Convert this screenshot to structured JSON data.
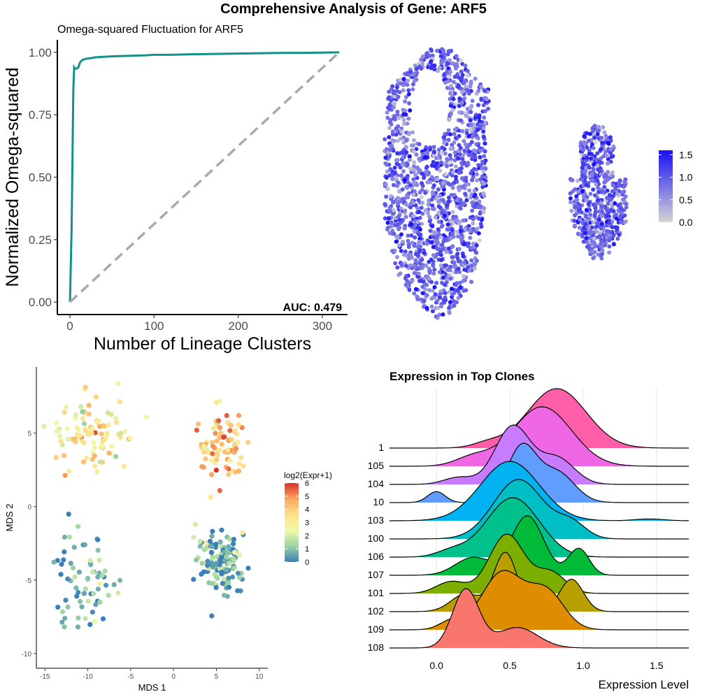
{
  "main_title": "Comprehensive Analysis of Gene: ARF5",
  "chart_data": [
    {
      "type": "line",
      "title": "Omega-squared Fluctuation for ARF5",
      "xlabel": "Number of Lineage Clusters",
      "ylabel": "Normalized Omega-squared",
      "xlim": [
        -15,
        330
      ],
      "ylim": [
        -0.05,
        1.05
      ],
      "xticks": [
        0,
        100,
        200,
        300
      ],
      "yticks": [
        0.0,
        0.25,
        0.5,
        0.75,
        1.0
      ],
      "ytick_labels": [
        "0.00",
        "0.25",
        "0.50",
        "0.75",
        "1.00"
      ],
      "grid": false,
      "annotation": "AUC: 0.479",
      "series": [
        {
          "role": "observed",
          "color": "#12918a",
          "x": [
            0,
            2,
            4,
            5,
            6,
            8,
            10,
            12,
            15,
            20,
            25,
            30,
            40,
            50,
            60,
            70,
            80,
            90,
            100,
            120,
            140,
            160,
            180,
            200,
            220,
            240,
            260,
            280,
            300,
            320
          ],
          "y": [
            0.0,
            0.3,
            0.85,
            0.94,
            0.935,
            0.935,
            0.94,
            0.96,
            0.97,
            0.975,
            0.977,
            0.98,
            0.982,
            0.984,
            0.985,
            0.986,
            0.987,
            0.988,
            0.99,
            0.99,
            0.992,
            0.993,
            0.994,
            0.995,
            0.996,
            0.997,
            0.998,
            0.998,
            0.999,
            1.0
          ]
        },
        {
          "role": "reference",
          "color": "#aaaaaa",
          "dashed": true,
          "x": [
            0,
            320
          ],
          "y": [
            0.0,
            1.0
          ]
        }
      ]
    },
    {
      "type": "scatter",
      "description": "embedding colored by expression",
      "legend_ticks": [
        "1.5",
        "1.0",
        "0.5",
        "0.0"
      ],
      "legend_range": [
        0,
        1.6
      ],
      "color_low": "#d4d4d4",
      "color_high": "#1a10f5",
      "clusters": [
        {
          "label": "left",
          "cx": 0.0,
          "cy": 0.0
        },
        {
          "label": "right",
          "cx": 1.0,
          "cy": 0.1
        }
      ]
    },
    {
      "type": "scatter",
      "xlabel": "MDS 1",
      "ylabel": "MDS 2",
      "xlim": [
        -16,
        11
      ],
      "ylim": [
        -11,
        9.5
      ],
      "xticks": [
        -15,
        -10,
        -5,
        0,
        5,
        10
      ],
      "yticks": [
        -10,
        -5,
        0,
        5
      ],
      "legend_title": "log2(Expr+1)",
      "legend_ticks": [
        6,
        5,
        4,
        3,
        2,
        1,
        0
      ],
      "colorscale": [
        "#3b7fb8",
        "#9bd3a2",
        "#f0f8a8",
        "#fee08b",
        "#fca55d",
        "#d7302a"
      ],
      "groups": [
        {
          "cx": -9.5,
          "cy": 5.0,
          "sx": 3.0,
          "sy": 1.7,
          "n": 95,
          "expr_mean": 3.3
        },
        {
          "cx": 5.5,
          "cy": 4.0,
          "sx": 1.8,
          "sy": 1.6,
          "n": 85,
          "expr_mean": 4.2
        },
        {
          "cx": -10.5,
          "cy": -4.8,
          "sx": 2.4,
          "sy": 2.1,
          "n": 70,
          "expr_mean": 0.6
        },
        {
          "cx": 5.5,
          "cy": -3.8,
          "sx": 1.9,
          "sy": 1.3,
          "n": 130,
          "expr_mean": 0.7
        }
      ]
    },
    {
      "type": "ridgeline",
      "title": "Expression in Top Clones",
      "xlabel": "Expression Level",
      "xlim": [
        -0.32,
        1.72
      ],
      "xticks": [
        0.0,
        0.5,
        1.0,
        1.5
      ],
      "xtick_labels": [
        "0.0",
        "0.5",
        "1.0",
        "1.5"
      ],
      "categories": [
        "1",
        "105",
        "104",
        "10",
        "103",
        "100",
        "106",
        "107",
        "101",
        "102",
        "109",
        "108"
      ],
      "series": [
        {
          "name": "1",
          "color": "#ff5fa8",
          "peaks": [
            [
              0.82,
              0.2,
              1.0
            ],
            [
              0.35,
              0.1,
              0.08
            ]
          ]
        },
        {
          "name": "105",
          "color": "#f067e6",
          "peaks": [
            [
              0.72,
              0.2,
              1.0
            ],
            [
              0.25,
              0.12,
              0.15
            ]
          ]
        },
        {
          "name": "104",
          "color": "#c77cff",
          "peaks": [
            [
              0.52,
              0.12,
              1.0
            ],
            [
              0.82,
              0.12,
              0.45
            ],
            [
              0.15,
              0.1,
              0.12
            ]
          ]
        },
        {
          "name": "10",
          "color": "#619cff",
          "peaks": [
            [
              0.58,
              0.1,
              1.0
            ],
            [
              0.82,
              0.12,
              0.55
            ],
            [
              0.0,
              0.06,
              0.2
            ]
          ]
        },
        {
          "name": "103",
          "color": "#00b3f0",
          "peaks": [
            [
              0.5,
              0.2,
              1.0
            ],
            [
              1.45,
              0.1,
              0.03
            ]
          ]
        },
        {
          "name": "100",
          "color": "#00bfc4",
          "peaks": [
            [
              0.56,
              0.17,
              1.0
            ],
            [
              0.92,
              0.1,
              0.25
            ]
          ]
        },
        {
          "name": "106",
          "color": "#00c08b",
          "peaks": [
            [
              0.52,
              0.18,
              1.0
            ],
            [
              0.1,
              0.1,
              0.1
            ]
          ]
        },
        {
          "name": "107",
          "color": "#00ba38",
          "peaks": [
            [
              0.62,
              0.11,
              1.0
            ],
            [
              0.97,
              0.07,
              0.45
            ],
            [
              0.25,
              0.12,
              0.3
            ]
          ]
        },
        {
          "name": "101",
          "color": "#7cae00",
          "peaks": [
            [
              0.48,
              0.12,
              1.0
            ],
            [
              0.78,
              0.1,
              0.35
            ],
            [
              0.1,
              0.1,
              0.2
            ]
          ]
        },
        {
          "name": "102",
          "color": "#b79f00",
          "peaks": [
            [
              0.47,
              0.08,
              1.0
            ],
            [
              0.92,
              0.08,
              0.55
            ],
            [
              0.2,
              0.1,
              0.3
            ]
          ]
        },
        {
          "name": "109",
          "color": "#de8c00",
          "peaks": [
            [
              0.45,
              0.14,
              1.0
            ],
            [
              0.75,
              0.12,
              0.65
            ],
            [
              0.1,
              0.08,
              0.15
            ]
          ]
        },
        {
          "name": "108",
          "color": "#f8766d",
          "peaks": [
            [
              0.2,
              0.09,
              1.0
            ],
            [
              0.55,
              0.14,
              0.35
            ]
          ]
        }
      ]
    }
  ]
}
